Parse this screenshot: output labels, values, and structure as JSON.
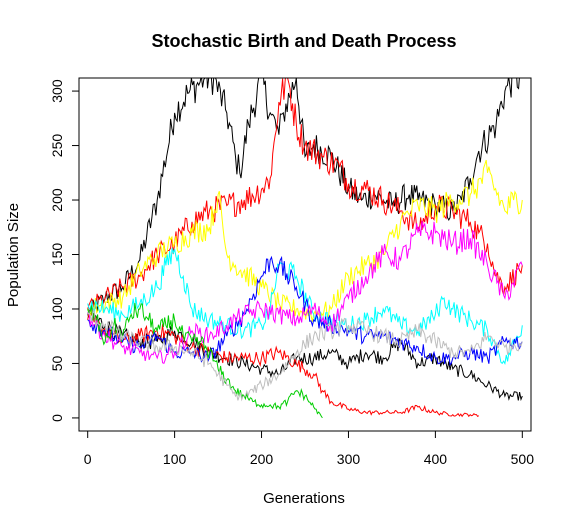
{
  "chart_data": {
    "type": "line",
    "title": "Stochastic Birth and Death Process",
    "xlabel": "Generations",
    "ylabel": "Population Size",
    "xlim": [
      -10,
      510
    ],
    "ylim": [
      -12,
      312
    ],
    "xticks": [
      0,
      100,
      200,
      300,
      400,
      500
    ],
    "yticks": [
      0,
      50,
      100,
      150,
      200,
      250,
      300
    ],
    "grid": false,
    "legend": "none",
    "series": [
      {
        "color": "#000000",
        "x": [
          0,
          20,
          40,
          60,
          80,
          100,
          115,
          125,
          135,
          145,
          160,
          170,
          175,
          185,
          200,
          210,
          220,
          225,
          240,
          250,
          260,
          280,
          300,
          315,
          330,
          340,
          350,
          370,
          380,
          400,
          420,
          430,
          440,
          450,
          470,
          480,
          490,
          500
        ],
        "y": [
          95,
          110,
          120,
          145,
          200,
          280,
          298,
          305,
          312,
          312,
          280,
          240,
          225,
          270,
          312,
          280,
          260,
          280,
          312,
          240,
          250,
          240,
          210,
          200,
          205,
          200,
          195,
          205,
          200,
          195,
          190,
          200,
          220,
          245,
          270,
          300,
          312,
          312
        ]
      },
      {
        "color": "#000000",
        "x": [
          0,
          20,
          40,
          60,
          80,
          100,
          120,
          140,
          160,
          180,
          200,
          220,
          240,
          260,
          280,
          300,
          320,
          340,
          360,
          380,
          400,
          420,
          440,
          460,
          480,
          500
        ],
        "y": [
          95,
          85,
          75,
          70,
          70,
          80,
          70,
          60,
          55,
          50,
          45,
          40,
          55,
          55,
          60,
          50,
          60,
          55,
          70,
          50,
          55,
          45,
          40,
          30,
          20,
          20
        ]
      },
      {
        "color": "#ff0000",
        "x": [
          0,
          20,
          40,
          60,
          70,
          80,
          100,
          120,
          140,
          160,
          180,
          200,
          210,
          220,
          230,
          240,
          250,
          270,
          290,
          300,
          320,
          340,
          360,
          380,
          400,
          420,
          440,
          450,
          460,
          470,
          480,
          500
        ],
        "y": [
          100,
          110,
          120,
          130,
          140,
          150,
          160,
          180,
          190,
          195,
          200,
          210,
          220,
          290,
          312,
          270,
          250,
          240,
          230,
          215,
          210,
          200,
          190,
          175,
          195,
          190,
          180,
          170,
          160,
          130,
          120,
          140
        ]
      },
      {
        "color": "#ff0000",
        "x": [
          0,
          40,
          60,
          80,
          100,
          120,
          140,
          160,
          180,
          200,
          220,
          240,
          260,
          270,
          280,
          300,
          320,
          340,
          360,
          380,
          400,
          420,
          440,
          450
        ],
        "y": [
          90,
          70,
          75,
          80,
          75,
          65,
          60,
          55,
          55,
          55,
          60,
          50,
          40,
          25,
          15,
          8,
          5,
          5,
          5,
          10,
          5,
          3,
          3,
          2
        ]
      },
      {
        "color": "#ffff00",
        "x": [
          0,
          40,
          60,
          80,
          100,
          120,
          140,
          150,
          160,
          170,
          200,
          220,
          240,
          260,
          280,
          300,
          320,
          340,
          360,
          380,
          400,
          420,
          440,
          460,
          480,
          490,
          500
        ],
        "y": [
          100,
          110,
          135,
          150,
          160,
          170,
          175,
          205,
          150,
          140,
          120,
          105,
          100,
          95,
          100,
          130,
          140,
          150,
          180,
          195,
          190,
          200,
          205,
          225,
          190,
          200,
          200
        ]
      },
      {
        "color": "#00ffff",
        "x": [
          0,
          20,
          40,
          60,
          80,
          90,
          100,
          110,
          120,
          140,
          160,
          180,
          200,
          210,
          220,
          240,
          260,
          280,
          300,
          320,
          340,
          360,
          380,
          400,
          410,
          420,
          440,
          460,
          480,
          500
        ],
        "y": [
          105,
          100,
          95,
          105,
          120,
          140,
          155,
          130,
          100,
          90,
          85,
          80,
          85,
          100,
          140,
          130,
          95,
          90,
          85,
          90,
          100,
          85,
          80,
          95,
          110,
          100,
          90,
          80,
          50,
          85
        ]
      },
      {
        "color": "#0000ff",
        "x": [
          0,
          20,
          40,
          60,
          80,
          100,
          120,
          140,
          160,
          180,
          200,
          210,
          220,
          240,
          260,
          280,
          300,
          320,
          340,
          360,
          380,
          400,
          420,
          440,
          460,
          480,
          500
        ],
        "y": [
          90,
          80,
          70,
          65,
          75,
          60,
          60,
          55,
          75,
          95,
          130,
          145,
          140,
          120,
          90,
          85,
          80,
          75,
          75,
          70,
          65,
          55,
          55,
          60,
          55,
          70,
          70
        ]
      },
      {
        "color": "#ff00ff",
        "x": [
          0,
          20,
          40,
          60,
          80,
          100,
          120,
          140,
          160,
          180,
          200,
          220,
          240,
          260,
          280,
          300,
          320,
          340,
          360,
          380,
          400,
          420,
          440,
          460,
          480,
          500
        ],
        "y": [
          95,
          75,
          65,
          60,
          55,
          60,
          80,
          75,
          85,
          95,
          100,
          95,
          90,
          100,
          85,
          110,
          130,
          150,
          145,
          170,
          170,
          160,
          165,
          140,
          110,
          140
        ]
      },
      {
        "color": "#00cd00",
        "x": [
          0,
          10,
          20,
          30,
          40,
          50,
          60,
          70,
          80,
          90,
          100,
          110,
          120,
          130,
          140,
          150,
          160,
          170,
          180,
          190,
          200,
          210,
          220,
          230,
          240,
          250,
          260,
          270
        ],
        "y": [
          100,
          90,
          70,
          85,
          75,
          95,
          100,
          90,
          80,
          85,
          90,
          75,
          70,
          70,
          60,
          45,
          35,
          25,
          20,
          15,
          12,
          12,
          10,
          15,
          25,
          20,
          10,
          0
        ]
      },
      {
        "color": "#bebebe",
        "x": [
          0,
          20,
          40,
          60,
          80,
          100,
          120,
          140,
          150,
          160,
          170,
          180,
          200,
          220,
          240,
          260,
          280,
          300,
          320,
          340,
          360,
          380,
          400,
          420,
          440,
          460,
          480,
          500
        ],
        "y": [
          95,
          85,
          75,
          70,
          65,
          65,
          60,
          50,
          40,
          30,
          20,
          20,
          30,
          40,
          60,
          75,
          80,
          85,
          80,
          75,
          70,
          80,
          70,
          60,
          60,
          75,
          65,
          70
        ]
      }
    ]
  }
}
